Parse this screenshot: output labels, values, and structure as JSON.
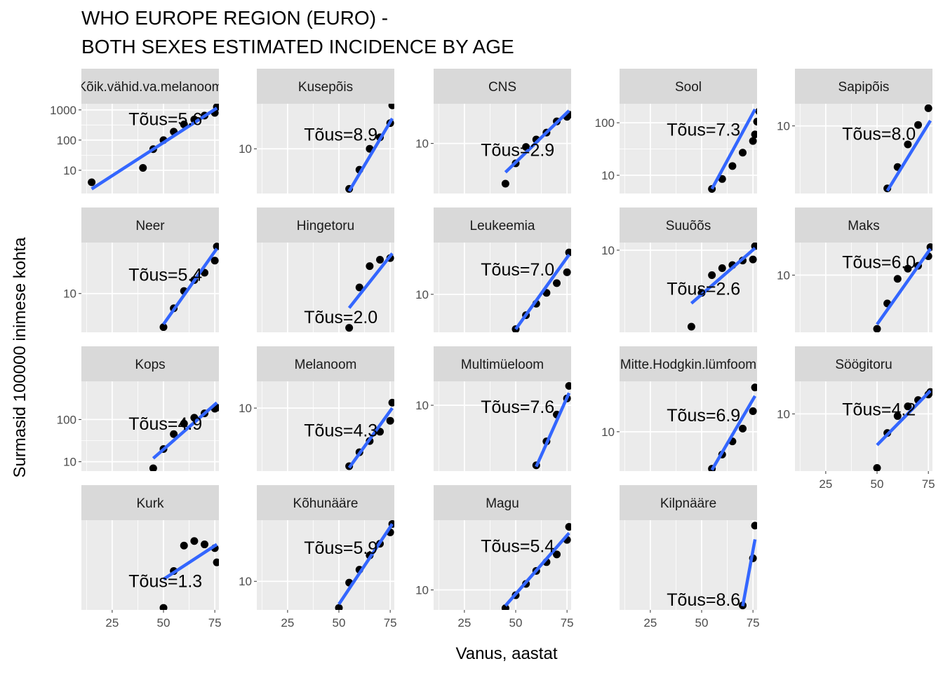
{
  "chart_data": {
    "type": "scatter",
    "title": [
      "WHO EUROPE REGION (EURO) -",
      "BOTH SEXES ESTIMATED INCIDENCE BY AGE"
    ],
    "xlabel": "Vanus, aastat",
    "ylabel": "Surmasid 100000 inimese kohta",
    "xlim": [
      10,
      77
    ],
    "x_ticks": [
      25,
      50,
      75
    ],
    "y_scale": "log10",
    "scales": "free_y",
    "trend_line": "linear",
    "colors": {
      "points": "#000000",
      "line": "#3366ff",
      "panel": "#ebebeb",
      "strip": "#d9d9d9",
      "grid": "#ffffff"
    },
    "panels": [
      {
        "name": "Kõik.vähid.va.melanoom",
        "ylim": [
          1.7,
          1600
        ],
        "y_ticks": [
          10,
          100,
          1000
        ],
        "y_tick_labels": [
          "10",
          "100",
          "1000"
        ],
        "annotation": "Tõus=5.6",
        "annotation_pos": [
          33,
          500
        ],
        "points": [
          [
            15,
            4
          ],
          [
            40,
            12
          ],
          [
            45,
            50
          ],
          [
            50,
            100
          ],
          [
            55,
            190
          ],
          [
            60,
            330
          ],
          [
            65,
            480
          ],
          [
            70,
            650
          ],
          [
            75,
            800
          ],
          [
            76,
            1250
          ]
        ],
        "fit": [
          [
            15,
            2.4
          ],
          [
            76,
            1150
          ]
        ]
      },
      {
        "name": "Kusepõis",
        "ylim": [
          3.6,
          28
        ],
        "y_ticks": [
          10
        ],
        "y_tick_labels": [
          "10"
        ],
        "annotation": "Tõus=8.9",
        "annotation_pos": [
          33,
          14
        ],
        "points": [
          [
            55,
            4.0
          ],
          [
            60,
            6.2
          ],
          [
            65,
            10
          ],
          [
            70,
            13
          ],
          [
            75,
            18
          ],
          [
            76,
            27
          ]
        ],
        "fit": [
          [
            55,
            3.8
          ],
          [
            76,
            20
          ]
        ]
      },
      {
        "name": "CNS",
        "ylim": [
          3.0,
          26
        ],
        "y_ticks": [
          10
        ],
        "y_tick_labels": [
          "10"
        ],
        "annotation": "Tõus=2.9",
        "annotation_pos": [
          33,
          8.6
        ],
        "points": [
          [
            45,
            3.8
          ],
          [
            50,
            6.2
          ],
          [
            55,
            9.2
          ],
          [
            60,
            11
          ],
          [
            65,
            13
          ],
          [
            70,
            17
          ],
          [
            75,
            19
          ],
          [
            76,
            20
          ]
        ],
        "fit": [
          [
            45,
            5
          ],
          [
            76,
            22
          ]
        ]
      },
      {
        "name": "Sool",
        "ylim": [
          4.5,
          230
        ],
        "y_ticks": [
          10,
          100
        ],
        "y_tick_labels": [
          "10",
          "100"
        ],
        "annotation": "Tõus=7.3",
        "annotation_pos": [
          33,
          75
        ],
        "points": [
          [
            55,
            5.5
          ],
          [
            60,
            8.5
          ],
          [
            65,
            15
          ],
          [
            70,
            27
          ],
          [
            75,
            45
          ],
          [
            76,
            60
          ],
          [
            77,
            105
          ],
          [
            78,
            165
          ]
        ],
        "fit": [
          [
            55,
            5.5
          ],
          [
            76,
            180
          ]
        ]
      },
      {
        "name": "Sapipõis",
        "ylim": [
          0.35,
          30
        ],
        "y_ticks": [
          10
        ],
        "y_tick_labels": [
          "10"
        ],
        "annotation": "Tõus=8.0",
        "annotation_pos": [
          33,
          6.8
        ],
        "points": [
          [
            55,
            0.45
          ],
          [
            60,
            1.3
          ],
          [
            65,
            4.0
          ],
          [
            70,
            10.5
          ],
          [
            75,
            24
          ]
        ],
        "fit": [
          [
            55,
            0.4
          ],
          [
            76,
            13
          ]
        ]
      },
      {
        "name": "Neer",
        "ylim": [
          4.7,
          27
        ],
        "y_ticks": [
          10
        ],
        "y_tick_labels": [
          "10"
        ],
        "annotation": "Tõus=5.4",
        "annotation_pos": [
          33,
          14.5
        ],
        "points": [
          [
            50,
            5.2
          ],
          [
            55,
            7.5
          ],
          [
            60,
            10.5
          ],
          [
            65,
            13
          ],
          [
            70,
            15
          ],
          [
            75,
            19
          ],
          [
            76,
            25
          ]
        ],
        "fit": [
          [
            50,
            5.5
          ],
          [
            76,
            24
          ]
        ]
      },
      {
        "name": "Hingetoru",
        "ylim": [
          0.09,
          0.75
        ],
        "y_ticks": [],
        "y_tick_labels": [],
        "annotation": "Tõus=2.0",
        "annotation_pos": [
          33,
          0.13
        ],
        "points": [
          [
            55,
            0.1
          ],
          [
            60,
            0.26
          ],
          [
            65,
            0.43
          ],
          [
            70,
            0.5
          ],
          [
            75,
            0.52
          ]
        ],
        "fit": [
          [
            55,
            0.16
          ],
          [
            76,
            0.58
          ]
        ]
      },
      {
        "name": "Leukeemia",
        "ylim": [
          4.7,
          28
        ],
        "y_ticks": [
          10
        ],
        "y_tick_labels": [
          "10"
        ],
        "annotation": "Tõus=7.0",
        "annotation_pos": [
          33,
          16.5
        ],
        "points": [
          [
            50,
            5.0
          ],
          [
            55,
            6.6
          ],
          [
            60,
            8.3
          ],
          [
            65,
            10.3
          ],
          [
            70,
            12.5
          ],
          [
            75,
            15.5
          ],
          [
            76,
            23
          ]
        ],
        "fit": [
          [
            50,
            5
          ],
          [
            76,
            22
          ]
        ]
      },
      {
        "name": "Suuõõs",
        "ylim": [
          1.4,
          12
        ],
        "y_ticks": [
          10
        ],
        "y_tick_labels": [
          "10"
        ],
        "annotation": "Tõus=2.6",
        "annotation_pos": [
          33,
          4.0
        ],
        "points": [
          [
            45,
            1.6
          ],
          [
            50,
            3.6
          ],
          [
            55,
            5.5
          ],
          [
            60,
            6.5
          ],
          [
            65,
            7.0
          ],
          [
            70,
            7.8
          ],
          [
            75,
            8.0
          ],
          [
            76,
            11
          ]
        ],
        "fit": [
          [
            45,
            2.8
          ],
          [
            76,
            10.5
          ]
        ]
      },
      {
        "name": "Maks",
        "ylim": [
          2.0,
          25
        ],
        "y_ticks": [
          10
        ],
        "y_tick_labels": [
          "10"
        ],
        "annotation": "Tõus=6.0",
        "annotation_pos": [
          33,
          14.5
        ],
        "points": [
          [
            50,
            2.2
          ],
          [
            55,
            4.5
          ],
          [
            60,
            9
          ],
          [
            65,
            12
          ],
          [
            70,
            13
          ],
          [
            75,
            17
          ],
          [
            76,
            22
          ]
        ],
        "fit": [
          [
            50,
            2.5
          ],
          [
            76,
            21
          ]
        ]
      },
      {
        "name": "Kops",
        "ylim": [
          6,
          800
        ],
        "y_ticks": [
          10,
          100
        ],
        "y_tick_labels": [
          "10",
          "100"
        ],
        "annotation": "Tõus=4.9",
        "annotation_pos": [
          33,
          80
        ],
        "points": [
          [
            45,
            7
          ],
          [
            50,
            20
          ],
          [
            55,
            45
          ],
          [
            60,
            80
          ],
          [
            65,
            110
          ],
          [
            70,
            140
          ],
          [
            75,
            180
          ],
          [
            76,
            190
          ]
        ],
        "fit": [
          [
            45,
            12
          ],
          [
            76,
            250
          ]
        ]
      },
      {
        "name": "Melanoom",
        "ylim": [
          3.3,
          16
        ],
        "y_ticks": [
          10
        ],
        "y_tick_labels": [
          "10"
        ],
        "annotation": "Tõus=4.3",
        "annotation_pos": [
          33,
          6.8
        ],
        "points": [
          [
            55,
            3.6
          ],
          [
            60,
            4.6
          ],
          [
            65,
            5.6
          ],
          [
            70,
            6.6
          ],
          [
            75,
            8.0
          ],
          [
            76,
            11
          ]
        ],
        "fit": [
          [
            55,
            3.5
          ],
          [
            76,
            10
          ]
        ]
      },
      {
        "name": "Multimüeloom",
        "ylim": [
          0.8,
          25
        ],
        "y_ticks": [
          10
        ],
        "y_tick_labels": [
          "10"
        ],
        "annotation": "Tõus=7.6",
        "annotation_pos": [
          33,
          9.5
        ],
        "points": [
          [
            60,
            1.0
          ],
          [
            65,
            2.5
          ],
          [
            70,
            7.0
          ],
          [
            75,
            13
          ],
          [
            76,
            21
          ]
        ],
        "fit": [
          [
            60,
            0.95
          ],
          [
            76,
            16
          ]
        ]
      },
      {
        "name": "Mitte.Hodgkin.lümfoom",
        "ylim": [
          5.4,
          22
        ],
        "y_ticks": [
          10
        ],
        "y_tick_labels": [
          "10"
        ],
        "annotation": "Tõus=6.9",
        "annotation_pos": [
          33,
          13
        ],
        "points": [
          [
            55,
            5.6
          ],
          [
            60,
            7.0
          ],
          [
            65,
            8.6
          ],
          [
            70,
            10.5
          ],
          [
            75,
            13.8
          ],
          [
            76,
            20
          ]
        ],
        "fit": [
          [
            55,
            5.5
          ],
          [
            76,
            17.5
          ]
        ]
      },
      {
        "name": "Söögitoru",
        "ylim": [
          2.5,
          22
        ],
        "y_ticks": [
          10
        ],
        "y_tick_labels": [
          "10"
        ],
        "annotation": "Tõus=4.2",
        "annotation_pos": [
          33,
          11.2
        ],
        "points": [
          [
            50,
            2.7
          ],
          [
            55,
            6.3
          ],
          [
            60,
            9.5
          ],
          [
            65,
            12
          ],
          [
            70,
            14
          ],
          [
            75,
            16
          ],
          [
            76,
            17
          ]
        ],
        "fit": [
          [
            50,
            4.7
          ],
          [
            76,
            17.5
          ]
        ]
      },
      {
        "name": "Kurk",
        "ylim": [
          0.052,
          0.6
        ],
        "y_ticks": [],
        "y_tick_labels": [],
        "annotation": "Tõus=1.3",
        "annotation_pos": [
          33,
          0.115
        ],
        "points": [
          [
            50,
            0.055
          ],
          [
            55,
            0.15
          ],
          [
            60,
            0.3
          ],
          [
            65,
            0.34
          ],
          [
            70,
            0.31
          ],
          [
            75,
            0.28
          ],
          [
            76,
            0.19
          ]
        ],
        "fit": [
          [
            50,
            0.12
          ],
          [
            76,
            0.31
          ]
        ]
      },
      {
        "name": "Kõhunääre",
        "ylim": [
          6.4,
          26
        ],
        "y_ticks": [
          10
        ],
        "y_tick_labels": [
          "10"
        ],
        "annotation": "Tõus=5.9",
        "annotation_pos": [
          33,
          17
        ],
        "points": [
          [
            50,
            6.6
          ],
          [
            55,
            9.8
          ],
          [
            60,
            12
          ],
          [
            65,
            15
          ],
          [
            70,
            18
          ],
          [
            75,
            21.5
          ],
          [
            76,
            24.5
          ]
        ],
        "fit": [
          [
            50,
            7
          ],
          [
            76,
            24.5
          ]
        ]
      },
      {
        "name": "Magu",
        "ylim": [
          7.3,
          30
        ],
        "y_ticks": [
          10
        ],
        "y_tick_labels": [
          "10"
        ],
        "annotation": "Tõus=5.4",
        "annotation_pos": [
          33,
          20
        ],
        "points": [
          [
            45,
            7.5
          ],
          [
            50,
            9.2
          ],
          [
            55,
            11
          ],
          [
            60,
            13.5
          ],
          [
            65,
            15.5
          ],
          [
            70,
            17.5
          ],
          [
            75,
            22
          ],
          [
            76,
            27
          ]
        ],
        "fit": [
          [
            45,
            7.8
          ],
          [
            76,
            24.5
          ]
        ]
      },
      {
        "name": "Kilpnääre",
        "ylim": [
          0.9,
          3.3
        ],
        "y_ticks": [],
        "y_tick_labels": [],
        "annotation": "Tõus=8.6",
        "annotation_pos": [
          33,
          1.05
        ],
        "points": [
          [
            70,
            0.96
          ],
          [
            75,
            1.9
          ],
          [
            76,
            3.05
          ]
        ],
        "fit": [
          [
            70,
            0.95
          ],
          [
            76,
            2.5
          ]
        ]
      }
    ]
  }
}
